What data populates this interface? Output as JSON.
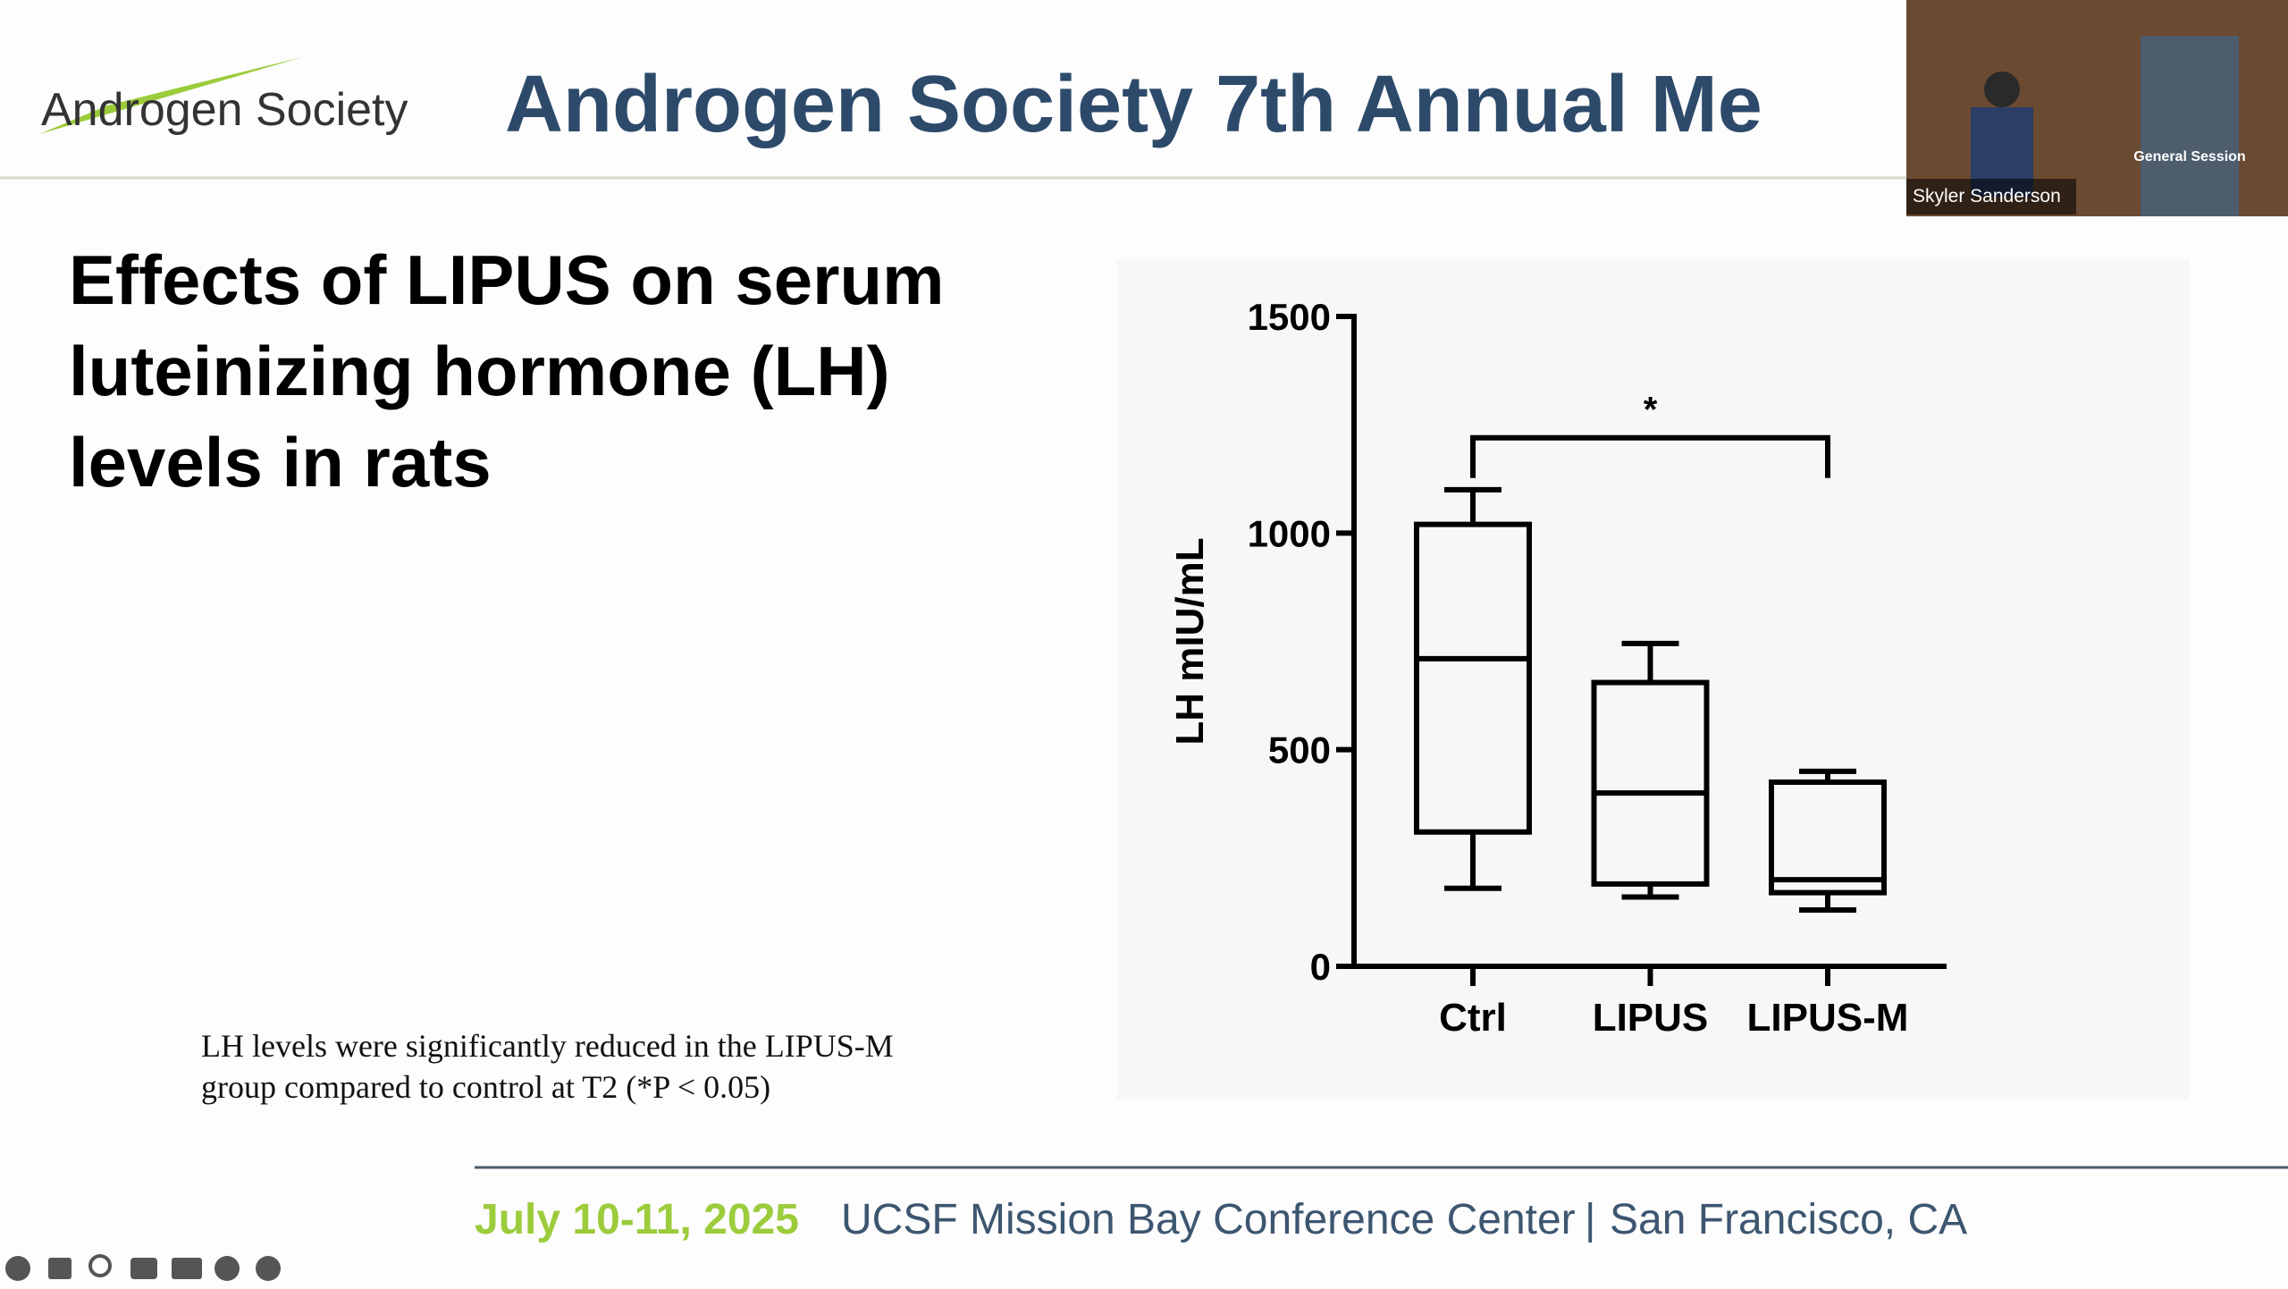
{
  "header": {
    "logo_text": "Androgen Society",
    "title": "Androgen Society 7th Annual Me"
  },
  "video": {
    "speaker": "Skyler Sanderson",
    "banner": "General Session"
  },
  "slide_title": [
    "Effects of LIPUS on serum",
    "luteinizing hormone (LH)",
    "levels in rats"
  ],
  "chart_data": {
    "type": "box",
    "y_label": "LH mIU/mL",
    "categories": [
      "Ctrl",
      "LIPUS",
      "LIPUS-M"
    ],
    "boxes": [
      {
        "min": 180,
        "q1": 310,
        "median": 710,
        "q3": 1020,
        "max": 1100
      },
      {
        "min": 160,
        "q1": 190,
        "median": 400,
        "q3": 655,
        "max": 745
      },
      {
        "min": 130,
        "q1": 170,
        "median": 200,
        "q3": 425,
        "max": 450
      }
    ],
    "color": "#000000",
    "ylim": [
      0,
      1500
    ],
    "yticks": [
      0,
      500,
      1000,
      1500
    ],
    "significance": {
      "label": "*",
      "groups": [
        0,
        2
      ],
      "y": 1220
    }
  },
  "caption": [
    "LH levels were significantly reduced in the LIPUS-M",
    "group compared to control at T2 (*P < 0.05)"
  ],
  "footer": {
    "date": "July 10-11, 2025",
    "venue": "UCSF Mission Bay Conference Center",
    "separator": "|",
    "city": "San Francisco, CA"
  }
}
